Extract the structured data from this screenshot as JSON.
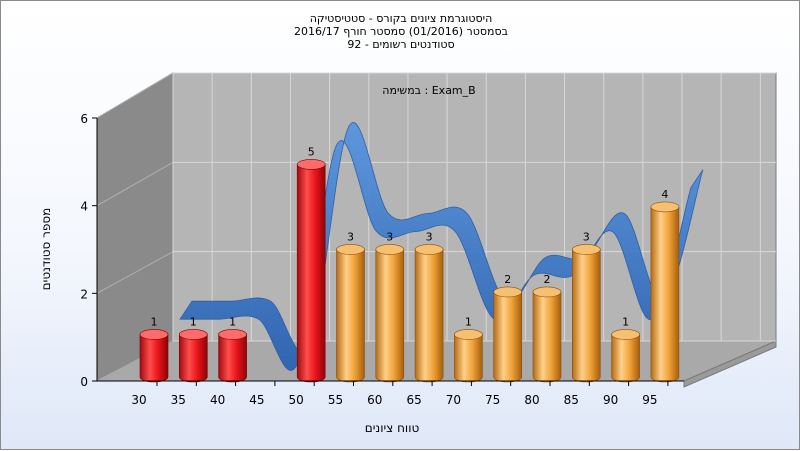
{
  "chart_data": {
    "type": "bar",
    "title_lines": [
      "היסטוגרמת ציונים בקורס - סטטיסטיקה",
      "בסמסטר  (01/2016)  סמסטר חורף 2016/17",
      "סטודנטים רשומים - 92"
    ],
    "exam_label": "במשימה : Exam_B",
    "xlabel": "טווח ציונים",
    "ylabel": "מספר סטודנטים",
    "categories": [
      "30",
      "35",
      "40",
      "45",
      "50",
      "55",
      "60",
      "65",
      "70",
      "75",
      "80",
      "85",
      "90",
      "95"
    ],
    "bars": [
      {
        "category": "30",
        "value": 1,
        "color": "red"
      },
      {
        "category": "35",
        "value": 1,
        "color": "red"
      },
      {
        "category": "40",
        "value": 1,
        "color": "red"
      },
      {
        "category": "50",
        "value": 5,
        "color": "red"
      },
      {
        "category": "55",
        "value": 3,
        "color": "orange"
      },
      {
        "category": "60",
        "value": 3,
        "color": "orange"
      },
      {
        "category": "65",
        "value": 3,
        "color": "orange"
      },
      {
        "category": "70",
        "value": 1,
        "color": "orange"
      },
      {
        "category": "75",
        "value": 2,
        "color": "orange"
      },
      {
        "category": "80",
        "value": 2,
        "color": "orange"
      },
      {
        "category": "85",
        "value": 3,
        "color": "orange"
      },
      {
        "category": "90",
        "value": 1,
        "color": "orange"
      },
      {
        "category": "95",
        "value": 4,
        "color": "orange"
      }
    ],
    "yticks": [
      0,
      2,
      4,
      6
    ],
    "ylim": [
      0,
      6
    ],
    "grid": true,
    "colors": {
      "fail": "#e8141a",
      "pass": "#f0a238",
      "ribbon": "#3a78c9",
      "wall": "#b8b8b8",
      "side_wall": "#8e8e8e"
    }
  }
}
